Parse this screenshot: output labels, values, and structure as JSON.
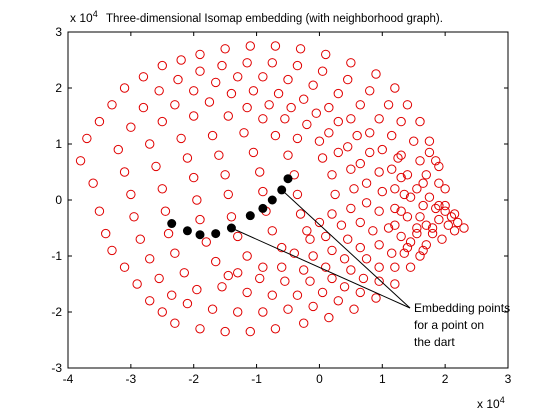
{
  "chart_data": {
    "type": "scatter",
    "title": "Three-dimensional Isomap embedding (with neighborhood graph).",
    "xlabel": "",
    "ylabel": "",
    "x_exponent_label": "x 10",
    "x_exponent_power": "4",
    "y_exponent_label": "x 10",
    "y_exponent_power": "4",
    "xlim": [
      -4,
      3
    ],
    "ylim": [
      -3,
      3
    ],
    "x_ticks": [
      "-4",
      "-3",
      "-2",
      "-1",
      "0",
      "1",
      "2",
      "3"
    ],
    "y_ticks": [
      "-3",
      "-2",
      "-1",
      "0",
      "1",
      "2",
      "3"
    ],
    "grid": false,
    "legend": "none",
    "colors": {
      "red_series": "#e00000",
      "black_series": "#000000",
      "axis": "#000000"
    },
    "series": [
      {
        "marker": "open-circle",
        "color": "#e00000",
        "description_points": "embedding points",
        "points": [
          [
            -3.8,
            0.7
          ],
          [
            -3.7,
            1.1
          ],
          [
            -3.6,
            0.3
          ],
          [
            -3.5,
            -0.2
          ],
          [
            -3.4,
            -0.6
          ],
          [
            -3.3,
            -0.9
          ],
          [
            -3.1,
            -1.2
          ],
          [
            -2.9,
            -1.5
          ],
          [
            -2.7,
            -1.8
          ],
          [
            -2.5,
            -2.0
          ],
          [
            -3.5,
            1.4
          ],
          [
            -3.3,
            1.7
          ],
          [
            -3.1,
            2.0
          ],
          [
            -2.8,
            2.2
          ],
          [
            -2.5,
            2.4
          ],
          [
            -2.2,
            2.5
          ],
          [
            -1.9,
            2.6
          ],
          [
            -1.5,
            2.7
          ],
          [
            -1.1,
            2.75
          ],
          [
            -0.7,
            2.75
          ],
          [
            -0.3,
            2.7
          ],
          [
            0.1,
            2.6
          ],
          [
            0.5,
            2.45
          ],
          [
            0.9,
            2.25
          ],
          [
            1.2,
            2.0
          ],
          [
            1.4,
            1.7
          ],
          [
            1.6,
            1.4
          ],
          [
            1.75,
            1.05
          ],
          [
            1.85,
            0.7
          ],
          [
            1.9,
            0.3
          ],
          [
            1.9,
            -0.1
          ],
          [
            1.8,
            -0.5
          ],
          [
            1.65,
            -0.9
          ],
          [
            1.45,
            -1.2
          ],
          [
            1.2,
            -1.5
          ],
          [
            0.9,
            -1.75
          ],
          [
            0.55,
            -1.95
          ],
          [
            0.15,
            -2.1
          ],
          [
            -0.25,
            -2.2
          ],
          [
            -0.7,
            -2.3
          ],
          [
            -1.1,
            -2.35
          ],
          [
            -1.5,
            -2.35
          ],
          [
            -1.9,
            -2.3
          ],
          [
            -2.3,
            -2.2
          ],
          [
            -3.2,
            0.9
          ],
          [
            -3.1,
            0.5
          ],
          [
            -3.0,
            0.1
          ],
          [
            -2.95,
            -0.3
          ],
          [
            -2.85,
            -0.7
          ],
          [
            -2.7,
            -1.05
          ],
          [
            -2.55,
            -1.4
          ],
          [
            -2.35,
            -1.7
          ],
          [
            -3.0,
            1.3
          ],
          [
            -2.8,
            1.65
          ],
          [
            -2.55,
            1.95
          ],
          [
            -2.25,
            2.15
          ],
          [
            -1.9,
            2.3
          ],
          [
            -1.55,
            2.4
          ],
          [
            -1.15,
            2.45
          ],
          [
            -0.75,
            2.45
          ],
          [
            -0.35,
            2.4
          ],
          [
            0.05,
            2.3
          ],
          [
            0.45,
            2.15
          ],
          [
            0.8,
            1.95
          ],
          [
            1.1,
            1.7
          ],
          [
            1.3,
            1.4
          ],
          [
            1.5,
            1.05
          ],
          [
            1.6,
            0.7
          ],
          [
            1.65,
            0.3
          ],
          [
            1.65,
            -0.1
          ],
          [
            1.55,
            -0.5
          ],
          [
            1.4,
            -0.85
          ],
          [
            1.2,
            -1.2
          ],
          [
            0.95,
            -1.45
          ],
          [
            0.65,
            -1.65
          ],
          [
            0.3,
            -1.8
          ],
          [
            -0.1,
            -1.9
          ],
          [
            -0.5,
            -1.95
          ],
          [
            -0.9,
            -2.0
          ],
          [
            -1.3,
            -2.0
          ],
          [
            -1.7,
            -1.95
          ],
          [
            -2.1,
            -1.85
          ],
          [
            -2.7,
            1.0
          ],
          [
            -2.6,
            0.6
          ],
          [
            -2.5,
            0.2
          ],
          [
            -2.45,
            -0.2
          ],
          [
            -2.4,
            -0.6
          ],
          [
            -2.3,
            -0.95
          ],
          [
            -2.15,
            -1.3
          ],
          [
            -1.95,
            -1.6
          ],
          [
            -2.5,
            1.4
          ],
          [
            -2.3,
            1.7
          ],
          [
            -2.0,
            1.95
          ],
          [
            -1.65,
            2.1
          ],
          [
            -1.3,
            2.2
          ],
          [
            -0.9,
            2.2
          ],
          [
            -0.5,
            2.15
          ],
          [
            -0.1,
            2.05
          ],
          [
            0.3,
            1.9
          ],
          [
            0.65,
            1.7
          ],
          [
            0.95,
            1.45
          ],
          [
            1.15,
            1.15
          ],
          [
            1.3,
            0.8
          ],
          [
            1.4,
            0.45
          ],
          [
            1.45,
            0.05
          ],
          [
            1.4,
            -0.3
          ],
          [
            1.3,
            -0.65
          ],
          [
            1.15,
            -0.95
          ],
          [
            0.95,
            -1.2
          ],
          [
            0.7,
            -1.4
          ],
          [
            0.4,
            -1.55
          ],
          [
            0.05,
            -1.65
          ],
          [
            -0.35,
            -1.7
          ],
          [
            -0.75,
            -1.7
          ],
          [
            -1.15,
            -1.65
          ],
          [
            -1.55,
            -1.55
          ],
          [
            -2.2,
            1.1
          ],
          [
            -2.1,
            0.75
          ],
          [
            -2.0,
            0.4
          ],
          [
            -1.95,
            0.0
          ],
          [
            -1.9,
            -0.35
          ],
          [
            -1.8,
            -0.75
          ],
          [
            -1.65,
            -1.1
          ],
          [
            -1.45,
            -1.35
          ],
          [
            -2.0,
            1.5
          ],
          [
            -1.75,
            1.75
          ],
          [
            -1.4,
            1.9
          ],
          [
            -1.05,
            1.95
          ],
          [
            -0.65,
            1.9
          ],
          [
            -0.25,
            1.8
          ],
          [
            0.15,
            1.65
          ],
          [
            0.5,
            1.45
          ],
          [
            0.8,
            1.2
          ],
          [
            1.0,
            0.9
          ],
          [
            1.15,
            0.55
          ],
          [
            1.2,
            0.2
          ],
          [
            1.2,
            -0.15
          ],
          [
            1.1,
            -0.5
          ],
          [
            0.95,
            -0.8
          ],
          [
            0.75,
            -1.05
          ],
          [
            0.5,
            -1.25
          ],
          [
            0.2,
            -1.4
          ],
          [
            -0.15,
            -1.45
          ],
          [
            -0.55,
            -1.45
          ],
          [
            -0.95,
            -1.4
          ],
          [
            -1.3,
            -1.3
          ],
          [
            -1.7,
            1.15
          ],
          [
            -1.6,
            0.8
          ],
          [
            -1.5,
            0.45
          ],
          [
            -1.45,
            0.1
          ],
          [
            -1.4,
            -0.3
          ],
          [
            -1.3,
            -0.65
          ],
          [
            -1.15,
            -1.0
          ],
          [
            -0.9,
            -1.2
          ],
          [
            -1.45,
            1.5
          ],
          [
            -1.15,
            1.65
          ],
          [
            -0.8,
            1.7
          ],
          [
            -0.45,
            1.65
          ],
          [
            -0.05,
            1.55
          ],
          [
            0.3,
            1.4
          ],
          [
            0.6,
            1.15
          ],
          [
            0.8,
            0.85
          ],
          [
            0.95,
            0.5
          ],
          [
            1.0,
            0.15
          ],
          [
            0.95,
            -0.2
          ],
          [
            0.85,
            -0.55
          ],
          [
            0.65,
            -0.85
          ],
          [
            0.4,
            -1.05
          ],
          [
            0.1,
            -1.2
          ],
          [
            -0.25,
            -1.25
          ],
          [
            -0.6,
            -1.2
          ],
          [
            -1.2,
            1.2
          ],
          [
            -1.05,
            0.85
          ],
          [
            -0.95,
            0.5
          ],
          [
            -0.9,
            0.15
          ],
          [
            -0.85,
            -0.2
          ],
          [
            -0.75,
            -0.55
          ],
          [
            -0.6,
            -0.85
          ],
          [
            -0.9,
            1.45
          ],
          [
            -0.55,
            1.45
          ],
          [
            -0.2,
            1.35
          ],
          [
            0.15,
            1.2
          ],
          [
            0.45,
            0.95
          ],
          [
            0.65,
            0.65
          ],
          [
            0.75,
            0.3
          ],
          [
            0.75,
            -0.05
          ],
          [
            0.65,
            -0.4
          ],
          [
            0.45,
            -0.7
          ],
          [
            0.2,
            -0.9
          ],
          [
            -0.1,
            -1.0
          ],
          [
            -0.4,
            -0.95
          ],
          [
            -0.7,
            1.15
          ],
          [
            -0.5,
            0.8
          ],
          [
            -0.4,
            0.45
          ],
          [
            -0.35,
            0.1
          ],
          [
            -0.3,
            -0.25
          ],
          [
            -0.2,
            -0.55
          ],
          [
            -0.35,
            1.1
          ],
          [
            0.0,
            1.05
          ],
          [
            0.3,
            0.85
          ],
          [
            0.5,
            0.55
          ],
          [
            0.55,
            0.2
          ],
          [
            0.5,
            -0.15
          ],
          [
            0.35,
            -0.45
          ],
          [
            0.1,
            -0.65
          ],
          [
            -0.15,
            -0.7
          ],
          [
            0.05,
            0.75
          ],
          [
            0.2,
            0.45
          ],
          [
            0.25,
            0.1
          ],
          [
            0.2,
            -0.25
          ],
          [
            0.0,
            -0.4
          ],
          [
            2.0,
            -0.2
          ],
          [
            2.1,
            -0.3
          ],
          [
            2.2,
            -0.4
          ],
          [
            2.3,
            -0.5
          ],
          [
            1.9,
            -0.35
          ],
          [
            2.05,
            -0.45
          ],
          [
            2.15,
            -0.55
          ],
          [
            1.8,
            -0.6
          ],
          [
            1.95,
            -0.7
          ],
          [
            1.7,
            -0.8
          ],
          [
            1.85,
            -0.15
          ],
          [
            2.0,
            -0.1
          ],
          [
            2.15,
            -0.25
          ],
          [
            1.75,
            0.05
          ],
          [
            1.6,
            -0.3
          ],
          [
            1.7,
            -0.45
          ],
          [
            1.55,
            -0.6
          ],
          [
            1.45,
            -0.75
          ],
          [
            1.35,
            -0.95
          ],
          [
            1.6,
            -1.0
          ],
          [
            1.2,
            -0.45
          ],
          [
            1.3,
            -0.2
          ],
          [
            1.35,
            0.1
          ],
          [
            1.3,
            0.4
          ],
          [
            1.55,
            0.2
          ],
          [
            1.7,
            0.45
          ],
          [
            1.75,
            0.85
          ],
          [
            2.0,
            0.2
          ],
          [
            1.9,
            0.6
          ],
          [
            1.25,
            0.75
          ]
        ]
      },
      {
        "marker": "filled-circle",
        "color": "#000000",
        "points": [
          [
            -2.35,
            -0.42
          ],
          [
            -2.1,
            -0.55
          ],
          [
            -1.9,
            -0.62
          ],
          [
            -1.65,
            -0.6
          ],
          [
            -1.4,
            -0.5
          ],
          [
            -1.1,
            -0.28
          ],
          [
            -0.9,
            -0.15
          ],
          [
            -0.75,
            0.0
          ],
          [
            -0.6,
            0.18
          ],
          [
            -0.5,
            0.38
          ]
        ]
      }
    ],
    "annotations": [
      {
        "lines": [
          "Embedding points",
          "for a point on",
          "the dart"
        ],
        "arrow_targets": [
          [
            -1.4,
            -0.5
          ],
          [
            -0.6,
            0.18
          ]
        ],
        "text_anchor": [
          1.55,
          -1.85
        ]
      }
    ]
  }
}
